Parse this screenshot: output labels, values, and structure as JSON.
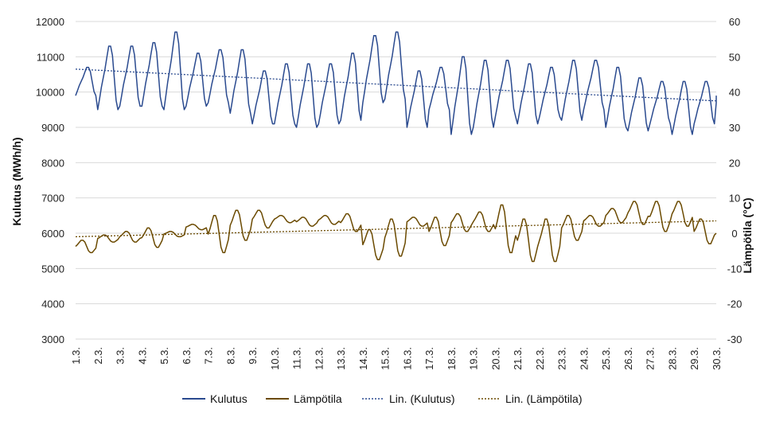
{
  "chart_data": {
    "type": "line",
    "xlabel": "",
    "ylabel_left": "Kulutus  (MWh/h)",
    "ylabel_right": "Lämpötila (°C)",
    "ylim_left": [
      3000,
      12000
    ],
    "ylim_right": [
      -30,
      60
    ],
    "yticks_left": [
      3000,
      4000,
      5000,
      6000,
      7000,
      8000,
      9000,
      10000,
      11000,
      12000
    ],
    "yticks_right": [
      -30,
      -20,
      -10,
      0,
      10,
      20,
      30,
      40,
      50,
      60
    ],
    "categories": [
      "1.3.",
      "2.3.",
      "3.3.",
      "4.3.",
      "5.3.",
      "6.3.",
      "7.3.",
      "8.3.",
      "9.3.",
      "10.3.",
      "11.3.",
      "12.3.",
      "13.3.",
      "14.3.",
      "15.3.",
      "16.3.",
      "17.3.",
      "18.3.",
      "19.3.",
      "20.3.",
      "21.3.",
      "22.3.",
      "23.3.",
      "24.3.",
      "25.3.",
      "26.3.",
      "27.3.",
      "28.3.",
      "29.3.",
      "30.3."
    ],
    "grid": true,
    "legend_position": "bottom",
    "colors": {
      "kulutus": "#2a4a8f",
      "lampotila": "#6b4a00",
      "trend_kulutus": "#2a4a8f",
      "trend_lampotila": "#6b4a00",
      "grid": "#d9d9d9"
    },
    "series": [
      {
        "name": "Kulutus",
        "axis": "left",
        "daily_min": [
          9900,
          9500,
          9600,
          9600,
          9500,
          9600,
          9700,
          9400,
          9100,
          9100,
          9000,
          9100,
          9200,
          9700,
          9800,
          9000,
          9500,
          8800,
          9000,
          9300,
          9100,
          9300,
          9200,
          9500,
          9000,
          8900,
          9100,
          8800,
          9100,
          9700
        ],
        "daily_max": [
          10700,
          11300,
          11300,
          11400,
          11700,
          11100,
          11200,
          11200,
          10600,
          10800,
          10800,
          10800,
          11100,
          11600,
          11700,
          10600,
          10700,
          11000,
          10900,
          10900,
          10800,
          10700,
          10900,
          10900,
          10700,
          10400,
          10300,
          10300,
          10300,
          10100
        ]
      },
      {
        "name": "Lämpötila",
        "axis": "right",
        "daily_min": [
          -5.5,
          -2.5,
          -2.5,
          -4.0,
          -1.0,
          1.0,
          -5.5,
          -2.0,
          1.5,
          3.0,
          2.0,
          2.5,
          0.5,
          -7.5,
          -6.5,
          2.0,
          -3.5,
          0.5,
          0.5,
          -5.5,
          -8.0,
          -8.0,
          -2.0,
          2.0,
          3.0,
          2.5,
          0.5,
          2.0,
          -3.0,
          -4.0
        ],
        "daily_max": [
          -2.0,
          -0.5,
          0.5,
          1.5,
          0.5,
          2.5,
          5.0,
          6.5,
          6.5,
          5.0,
          4.5,
          5.0,
          5.5,
          1.0,
          4.0,
          4.5,
          4.5,
          5.5,
          6.0,
          8.0,
          4.0,
          4.0,
          5.0,
          5.0,
          7.0,
          9.0,
          9.0,
          9.0,
          4.0,
          4.0
        ]
      },
      {
        "name": "Lin. (Kulutus)",
        "axis": "left",
        "trend": [
          10650,
          9750
        ]
      },
      {
        "name": "Lin. (Lämpötila)",
        "axis": "right",
        "trend": [
          -1.0,
          3.5
        ]
      }
    ]
  },
  "legend": {
    "kulutus": "Kulutus",
    "lampotila": "Lämpötila",
    "lin_kulutus": "Lin. (Kulutus)",
    "lin_lampotila": "Lin. (Lämpötila)"
  }
}
